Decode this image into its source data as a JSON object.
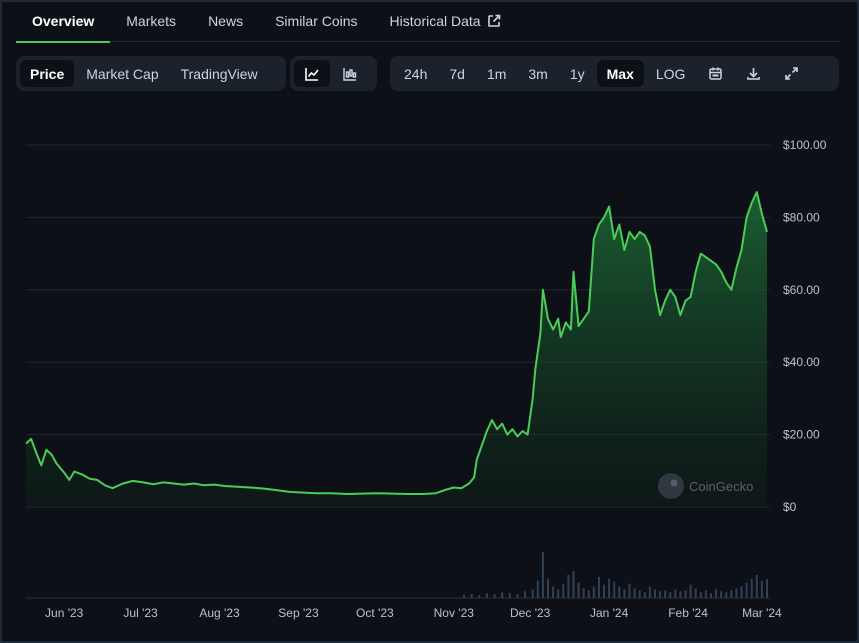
{
  "tabs": {
    "overview": "Overview",
    "markets": "Markets",
    "news": "News",
    "similar": "Similar Coins",
    "historical": "Historical Data"
  },
  "toolbar": {
    "price": "Price",
    "market_cap": "Market Cap",
    "trading_view": "TradingView",
    "ranges": [
      "24h",
      "7d",
      "1m",
      "3m",
      "1y",
      "Max"
    ],
    "active_range": "Max",
    "log": "LOG"
  },
  "watermark": "CoinGecko",
  "colors": {
    "line": "#4bcc58",
    "background": "#0d1117",
    "grid": "#1f2733",
    "volume": "#334155"
  },
  "chart_data": {
    "type": "area",
    "ylim": [
      0,
      100
    ],
    "y_ticks": [
      "$0",
      "$20.00",
      "$40.00",
      "$60.00",
      "$80.00",
      "$100.00"
    ],
    "y_tick_values": [
      0,
      20,
      40,
      60,
      80,
      100
    ],
    "x_ticks": [
      "Jun '23",
      "Jul '23",
      "Aug '23",
      "Sep '23",
      "Oct '23",
      "Nov '23",
      "Dec '23",
      "Jan '24",
      "Feb '24",
      "Mar '24"
    ],
    "x_tick_dates": [
      "2023-06-01",
      "2023-07-01",
      "2023-08-01",
      "2023-09-01",
      "2023-10-01",
      "2023-11-01",
      "2023-12-01",
      "2024-01-01",
      "2024-02-01",
      "2024-03-01"
    ],
    "series": [
      {
        "points": [
          [
            "2023-05-17",
            17.5
          ],
          [
            "2023-05-19",
            18.8
          ],
          [
            "2023-05-21",
            15
          ],
          [
            "2023-05-23",
            11.5
          ],
          [
            "2023-05-25",
            15.8
          ],
          [
            "2023-05-27",
            14.5
          ],
          [
            "2023-05-29",
            12
          ],
          [
            "2023-06-01",
            9.5
          ],
          [
            "2023-06-03",
            7.5
          ],
          [
            "2023-06-05",
            9.8
          ],
          [
            "2023-06-08",
            9
          ],
          [
            "2023-06-11",
            7.8
          ],
          [
            "2023-06-14",
            7.5
          ],
          [
            "2023-06-17",
            6
          ],
          [
            "2023-06-20",
            5.2
          ],
          [
            "2023-06-24",
            6.5
          ],
          [
            "2023-06-28",
            7.2
          ],
          [
            "2023-07-02",
            6.8
          ],
          [
            "2023-07-06",
            6.3
          ],
          [
            "2023-07-10",
            6.8
          ],
          [
            "2023-07-14",
            6.5
          ],
          [
            "2023-07-18",
            6.2
          ],
          [
            "2023-07-22",
            6.5
          ],
          [
            "2023-07-26",
            6
          ],
          [
            "2023-07-30",
            6.2
          ],
          [
            "2023-08-03",
            5.8
          ],
          [
            "2023-08-08",
            5.6
          ],
          [
            "2023-08-13",
            5.4
          ],
          [
            "2023-08-18",
            5.1
          ],
          [
            "2023-08-23",
            4.7
          ],
          [
            "2023-08-28",
            4.2
          ],
          [
            "2023-09-02",
            4
          ],
          [
            "2023-09-08",
            3.8
          ],
          [
            "2023-09-14",
            3.8
          ],
          [
            "2023-09-20",
            3.6
          ],
          [
            "2023-09-26",
            3.7
          ],
          [
            "2023-10-02",
            3.8
          ],
          [
            "2023-10-08",
            3.7
          ],
          [
            "2023-10-14",
            3.6
          ],
          [
            "2023-10-20",
            3.6
          ],
          [
            "2023-10-25",
            3.8
          ],
          [
            "2023-10-29",
            4.8
          ],
          [
            "2023-11-01",
            5.4
          ],
          [
            "2023-11-04",
            5.2
          ],
          [
            "2023-11-07",
            6.5
          ],
          [
            "2023-11-09",
            8.2
          ],
          [
            "2023-11-10",
            13
          ],
          [
            "2023-11-12",
            17
          ],
          [
            "2023-11-14",
            21
          ],
          [
            "2023-11-16",
            24
          ],
          [
            "2023-11-18",
            21.5
          ],
          [
            "2023-11-20",
            23
          ],
          [
            "2023-11-22",
            20
          ],
          [
            "2023-11-24",
            21.5
          ],
          [
            "2023-11-26",
            19.5
          ],
          [
            "2023-11-28",
            21
          ],
          [
            "2023-11-30",
            20
          ],
          [
            "2023-12-02",
            30
          ],
          [
            "2023-12-03",
            38
          ],
          [
            "2023-12-05",
            48
          ],
          [
            "2023-12-06",
            60
          ],
          [
            "2023-12-08",
            52
          ],
          [
            "2023-12-10",
            49
          ],
          [
            "2023-12-12",
            52
          ],
          [
            "2023-12-13",
            47
          ],
          [
            "2023-12-15",
            51
          ],
          [
            "2023-12-17",
            49
          ],
          [
            "2023-12-18",
            65
          ],
          [
            "2023-12-20",
            50
          ],
          [
            "2023-12-22",
            52
          ],
          [
            "2023-12-24",
            54
          ],
          [
            "2023-12-26",
            74
          ],
          [
            "2023-12-28",
            78
          ],
          [
            "2023-12-30",
            80
          ],
          [
            "2024-01-01",
            83
          ],
          [
            "2024-01-03",
            74
          ],
          [
            "2024-01-05",
            78
          ],
          [
            "2024-01-07",
            71
          ],
          [
            "2024-01-09",
            76
          ],
          [
            "2024-01-11",
            74
          ],
          [
            "2024-01-13",
            76
          ],
          [
            "2024-01-15",
            75
          ],
          [
            "2024-01-17",
            72
          ],
          [
            "2024-01-19",
            60
          ],
          [
            "2024-01-21",
            53
          ],
          [
            "2024-01-23",
            57
          ],
          [
            "2024-01-25",
            60
          ],
          [
            "2024-01-27",
            58
          ],
          [
            "2024-01-29",
            53
          ],
          [
            "2024-01-31",
            57
          ],
          [
            "2024-02-02",
            58
          ],
          [
            "2024-02-04",
            65
          ],
          [
            "2024-02-06",
            70
          ],
          [
            "2024-02-08",
            69
          ],
          [
            "2024-02-10",
            68
          ],
          [
            "2024-02-12",
            67
          ],
          [
            "2024-02-14",
            65
          ],
          [
            "2024-02-16",
            62
          ],
          [
            "2024-02-18",
            60
          ],
          [
            "2024-02-20",
            66
          ],
          [
            "2024-02-22",
            71
          ],
          [
            "2024-02-24",
            80
          ],
          [
            "2024-02-26",
            84
          ],
          [
            "2024-02-28",
            87
          ],
          [
            "2024-03-01",
            81
          ],
          [
            "2024-03-03",
            76
          ]
        ]
      }
    ],
    "volume": [
      [
        "2023-11-05",
        3
      ],
      [
        "2023-11-08",
        4
      ],
      [
        "2023-11-11",
        3
      ],
      [
        "2023-11-14",
        5
      ],
      [
        "2023-11-17",
        4
      ],
      [
        "2023-11-20",
        6
      ],
      [
        "2023-11-23",
        5
      ],
      [
        "2023-11-26",
        4
      ],
      [
        "2023-11-29",
        7
      ],
      [
        "2023-12-02",
        9
      ],
      [
        "2023-12-04",
        18
      ],
      [
        "2023-12-06",
        48
      ],
      [
        "2023-12-08",
        20
      ],
      [
        "2023-12-10",
        12
      ],
      [
        "2023-12-12",
        9
      ],
      [
        "2023-12-14",
        15
      ],
      [
        "2023-12-16",
        24
      ],
      [
        "2023-12-18",
        28
      ],
      [
        "2023-12-20",
        16
      ],
      [
        "2023-12-22",
        10
      ],
      [
        "2023-12-24",
        8
      ],
      [
        "2023-12-26",
        12
      ],
      [
        "2023-12-28",
        22
      ],
      [
        "2023-12-30",
        14
      ],
      [
        "2024-01-01",
        20
      ],
      [
        "2024-01-03",
        17
      ],
      [
        "2024-01-05",
        12
      ],
      [
        "2024-01-07",
        9
      ],
      [
        "2024-01-09",
        15
      ],
      [
        "2024-01-11",
        10
      ],
      [
        "2024-01-13",
        8
      ],
      [
        "2024-01-15",
        6
      ],
      [
        "2024-01-17",
        12
      ],
      [
        "2024-01-19",
        9
      ],
      [
        "2024-01-21",
        7
      ],
      [
        "2024-01-23",
        8
      ],
      [
        "2024-01-25",
        6
      ],
      [
        "2024-01-27",
        9
      ],
      [
        "2024-01-29",
        7
      ],
      [
        "2024-01-31",
        8
      ],
      [
        "2024-02-02",
        14
      ],
      [
        "2024-02-04",
        10
      ],
      [
        "2024-02-06",
        6
      ],
      [
        "2024-02-08",
        8
      ],
      [
        "2024-02-10",
        5
      ],
      [
        "2024-02-12",
        9
      ],
      [
        "2024-02-14",
        7
      ],
      [
        "2024-02-16",
        6
      ],
      [
        "2024-02-18",
        8
      ],
      [
        "2024-02-20",
        10
      ],
      [
        "2024-02-22",
        12
      ],
      [
        "2024-02-24",
        16
      ],
      [
        "2024-02-26",
        20
      ],
      [
        "2024-02-28",
        24
      ],
      [
        "2024-03-01",
        18
      ],
      [
        "2024-03-03",
        20
      ]
    ]
  }
}
